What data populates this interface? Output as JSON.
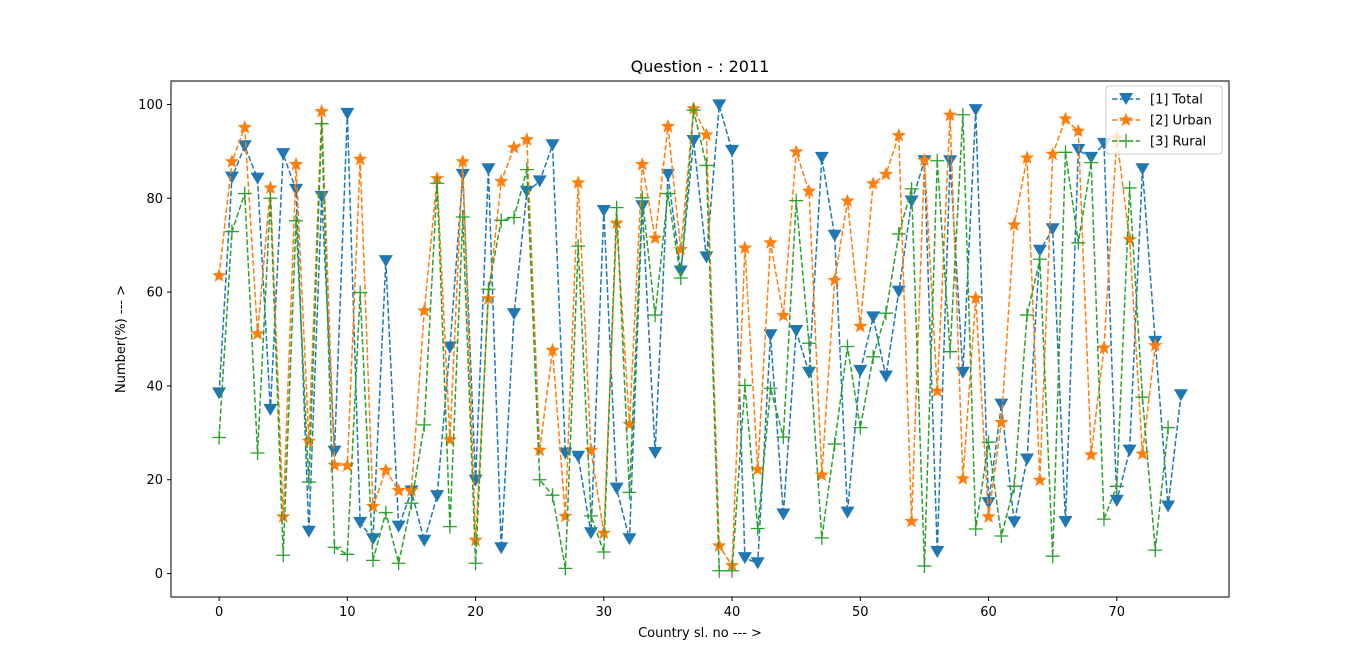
{
  "chart_data": {
    "type": "line",
    "title": "Question - : 2011",
    "xlabel": "Country sl. no --- >",
    "ylabel": "Number(%) --- >",
    "xlim": [
      -3.75,
      78.75
    ],
    "ylim": [
      -5,
      105
    ],
    "xticks": [
      0,
      10,
      20,
      30,
      40,
      50,
      60,
      70
    ],
    "yticks": [
      0,
      20,
      40,
      60,
      80,
      100
    ],
    "legend": "top-right",
    "grid": false,
    "series": [
      {
        "name": "[1] Total",
        "color": "#1f77b4",
        "marker": "triangle-down",
        "x": [
          0,
          1,
          2,
          3,
          4,
          5,
          6,
          7,
          8,
          9,
          10,
          11,
          12,
          13,
          14,
          15,
          16,
          17,
          18,
          19,
          20,
          21,
          22,
          23,
          24,
          25,
          26,
          27,
          28,
          29,
          30,
          31,
          32,
          33,
          34,
          35,
          36,
          37,
          38,
          39,
          40,
          41,
          42,
          43,
          44,
          45,
          46,
          47,
          48,
          49,
          50,
          51,
          52,
          53,
          54,
          55,
          56,
          57,
          58,
          59,
          60,
          61,
          62,
          63,
          64,
          65,
          66,
          67,
          68,
          69,
          70,
          71,
          72,
          73,
          74,
          75
        ],
        "values": [
          38.4,
          84.4,
          91.1,
          84.2,
          34.9,
          89.4,
          81.8,
          8.9,
          80.3,
          26.0,
          98.0,
          10.8,
          7.3,
          66.6,
          10.0,
          17.5,
          7.0,
          16.5,
          48.2,
          85.0,
          19.8,
          86.2,
          5.4,
          55.3,
          81.4,
          83.6,
          91.3,
          25.6,
          24.9,
          8.6,
          77.3,
          18.1,
          7.3,
          78.3,
          25.7,
          85.0,
          64.4,
          92.2,
          67.4,
          99.8,
          90.1,
          3.3,
          2.2,
          50.8,
          12.6,
          51.7,
          42.8,
          88.6,
          72.0,
          13.0,
          43.2,
          54.6,
          42.0,
          60.1,
          79.3,
          87.9,
          4.6,
          87.9,
          42.8,
          98.8,
          15.0,
          36.0,
          10.9,
          24.3,
          68.8,
          73.4,
          11.0,
          90.3,
          88.6,
          91.6,
          15.5,
          26.2,
          86.2,
          49.4,
          14.3,
          38.0
        ]
      },
      {
        "name": "[2] Urban",
        "color": "#ff7f0e",
        "marker": "star",
        "x": [
          0,
          1,
          2,
          3,
          4,
          5,
          6,
          7,
          8,
          9,
          10,
          11,
          12,
          13,
          14,
          15,
          16,
          17,
          18,
          19,
          20,
          21,
          22,
          23,
          24,
          25,
          26,
          27,
          28,
          29,
          30,
          31,
          32,
          33,
          34,
          35,
          36,
          37,
          38,
          39,
          40,
          41,
          42,
          43,
          44,
          45,
          46,
          47,
          48,
          49,
          50,
          51,
          52,
          53,
          54,
          55,
          56,
          57,
          58,
          59,
          60,
          61,
          62,
          63,
          64,
          65,
          66,
          67,
          68,
          69,
          70,
          71,
          72,
          73
        ],
        "values": [
          63.5,
          87.8,
          95.1,
          51.1,
          82.2,
          12.1,
          87.2,
          28.2,
          98.5,
          23.1,
          23.0,
          88.3,
          14.3,
          22.0,
          17.7,
          17.7,
          56.0,
          84.2,
          28.5,
          87.8,
          7.1,
          58.6,
          83.6,
          90.8,
          92.5,
          26.3,
          47.6,
          12.2,
          83.3,
          26.3,
          8.6,
          74.7,
          31.8,
          87.2,
          71.5,
          95.3,
          69.1,
          99.1,
          93.5,
          5.9,
          1.7,
          69.4,
          22.2,
          70.5,
          55.0,
          89.9,
          81.5,
          21.0,
          62.5,
          79.4,
          52.7,
          83.1,
          85.1,
          93.4,
          11.1,
          88.1,
          38.9,
          97.7,
          20.2,
          58.7,
          12.1,
          32.2,
          74.3,
          88.6,
          19.9,
          89.4,
          96.9,
          94.3,
          25.3,
          48.1,
          92.9,
          71.2,
          25.5,
          48.6
        ]
      },
      {
        "name": "[3] Rural",
        "color": "#2ca02c",
        "marker": "plus",
        "x": [
          0,
          1,
          2,
          3,
          4,
          5,
          6,
          7,
          8,
          9,
          10,
          11,
          12,
          13,
          14,
          15,
          16,
          17,
          18,
          19,
          20,
          21,
          22,
          23,
          24,
          25,
          26,
          27,
          28,
          29,
          30,
          31,
          32,
          33,
          34,
          35,
          36,
          37,
          38,
          39,
          40,
          41,
          42,
          43,
          44,
          45,
          46,
          47,
          48,
          49,
          50,
          51,
          52,
          53,
          54,
          55,
          56,
          57,
          58,
          59,
          60,
          61,
          62,
          63,
          64,
          65,
          66,
          67,
          68,
          69,
          70,
          71,
          72,
          73,
          74
        ],
        "values": [
          29.0,
          72.9,
          81.0,
          25.7,
          80.0,
          3.9,
          75.2,
          19.5,
          95.9,
          5.6,
          4.1,
          59.9,
          2.8,
          13.0,
          2.2,
          15.0,
          31.7,
          83.2,
          10.0,
          76.0,
          2.2,
          60.6,
          75.3,
          75.9,
          86.1,
          20.0,
          16.7,
          1.1,
          69.8,
          12.3,
          4.6,
          78.0,
          17.3,
          80.1,
          55.1,
          81.0,
          63.0,
          98.8,
          87.0,
          0.6,
          0.6,
          40.1,
          9.6,
          39.5,
          29.1,
          79.5,
          49.1,
          7.6,
          27.6,
          48.4,
          31.1,
          46.2,
          55.5,
          72.4,
          82.0,
          1.6,
          88.0,
          47.3,
          97.8,
          9.5,
          28.0,
          8.0,
          18.6,
          55.1,
          67.0,
          3.7,
          89.8,
          70.5,
          87.6,
          11.6,
          18.6,
          82.2,
          37.6,
          5.0,
          31.1
        ]
      }
    ]
  }
}
